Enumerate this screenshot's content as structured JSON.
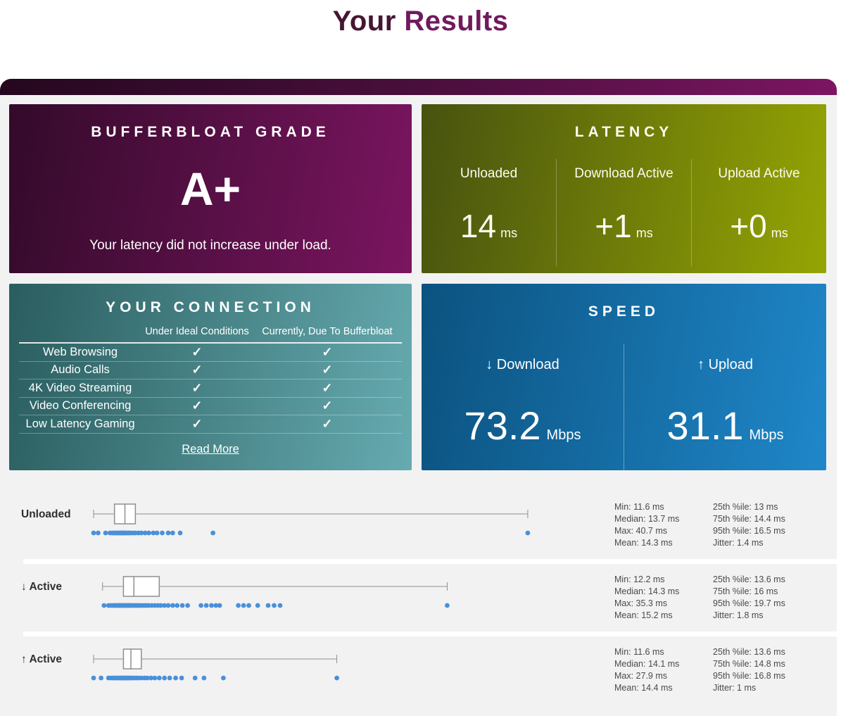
{
  "page_title": {
    "word1": "Your",
    "word2": "Results"
  },
  "colors": {
    "title_dark": "#451634",
    "title_magenta": "#701a5e",
    "topbar_gradient": [
      "#25071f",
      "#7c1562"
    ],
    "grade_card_gradient": [
      "#330a2a",
      "#7b1560"
    ],
    "latency_card_gradient": [
      "#47520f",
      "#95a503"
    ],
    "connection_card_gradient": [
      "#2a5d5f",
      "#66abb0"
    ],
    "speed_card_gradient": [
      "#0b527f",
      "#1f87c9"
    ],
    "page_background": "#f2f2f3",
    "dot_blue": "#4a90d9",
    "box_stroke": "#8f8f8f",
    "stats_text": "#4a4a4a"
  },
  "cards": {
    "grade": {
      "title": "BUFFERBLOAT GRADE",
      "grade": "A+",
      "note": "Your latency did not increase under load."
    },
    "latency": {
      "title": "LATENCY",
      "unit": "ms",
      "cols": [
        {
          "label": "Unloaded",
          "value": "14"
        },
        {
          "label": "Download Active",
          "value": "+1"
        },
        {
          "label": "Upload Active",
          "value": "+0"
        }
      ]
    },
    "connection": {
      "title": "YOUR CONNECTION",
      "col_headers": [
        "Under Ideal Conditions",
        "Currently, Due To Bufferbloat"
      ],
      "rows": [
        {
          "label": "Web Browsing",
          "ideal": "✓",
          "current": "✓"
        },
        {
          "label": "Audio Calls",
          "ideal": "✓",
          "current": "✓"
        },
        {
          "label": "4K Video Streaming",
          "ideal": "✓",
          "current": "✓"
        },
        {
          "label": "Video Conferencing",
          "ideal": "✓",
          "current": "✓"
        },
        {
          "label": "Low Latency Gaming",
          "ideal": "✓",
          "current": "✓"
        }
      ],
      "read_more": "Read More"
    },
    "speed": {
      "title": "SPEED",
      "unit": "Mbps",
      "cols": [
        {
          "arrow": "↓",
          "label": "Download",
          "value": "73.2"
        },
        {
          "arrow": "↑",
          "label": "Upload",
          "value": "31.1"
        }
      ]
    }
  },
  "plots": [
    {
      "arrow": "",
      "label": "Unloaded",
      "stats_col1": [
        "Min: 11.6 ms",
        "Median: 13.7 ms",
        "Max: 40.7 ms",
        "Mean: 14.3 ms"
      ],
      "stats_col2": [
        "25th %ile: 13 ms",
        "75th %ile: 14.4 ms",
        "95th %ile: 16.5 ms",
        "Jitter: 1.4 ms"
      ]
    },
    {
      "arrow": "↓",
      "label": "Active",
      "stats_col1": [
        "Min: 12.2 ms",
        "Median: 14.3 ms",
        "Max: 35.3 ms",
        "Mean: 15.2 ms"
      ],
      "stats_col2": [
        "25th %ile: 13.6 ms",
        "75th %ile: 16 ms",
        "95th %ile: 19.7 ms",
        "Jitter: 1.8 ms"
      ]
    },
    {
      "arrow": "↑",
      "label": "Active",
      "stats_col1": [
        "Min: 11.6 ms",
        "Median: 14.1 ms",
        "Max: 27.9 ms",
        "Mean: 14.4 ms"
      ],
      "stats_col2": [
        "25th %ile: 13.6 ms",
        "75th %ile: 14.8 ms",
        "95th %ile: 16.8 ms",
        "Jitter: 1 ms"
      ]
    }
  ],
  "chart_data": [
    {
      "type": "boxplot",
      "name": "Unloaded latency",
      "unit": "ms",
      "x_range": [
        11.6,
        40.7
      ],
      "min": 11.6,
      "q1": 13,
      "median": 13.7,
      "q3": 14.4,
      "max": 40.7,
      "mean": 14.3,
      "p95": 16.5,
      "jitter": 1.4,
      "points": [
        11.6,
        11.9,
        12.4,
        12.7,
        12.85,
        12.95,
        13.05,
        13.1,
        13.2,
        13.25,
        13.3,
        13.4,
        13.45,
        13.5,
        13.6,
        13.65,
        13.7,
        13.8,
        13.9,
        14.0,
        14.1,
        14.25,
        14.4,
        14.6,
        14.8,
        15.05,
        15.3,
        15.6,
        15.85,
        16.2,
        16.6,
        16.9,
        17.4,
        19.6,
        40.7
      ]
    },
    {
      "type": "boxplot",
      "name": "Download active latency",
      "unit": "ms",
      "x_range": [
        12.2,
        35.3
      ],
      "min": 12.2,
      "q1": 13.6,
      "median": 14.3,
      "q3": 16,
      "max": 35.3,
      "mean": 15.2,
      "p95": 19.7,
      "jitter": 1.8,
      "points": [
        12.3,
        12.6,
        12.75,
        12.9,
        13.0,
        13.1,
        13.2,
        13.3,
        13.35,
        13.4,
        13.5,
        13.55,
        13.6,
        13.7,
        13.75,
        13.8,
        13.9,
        13.95,
        14.0,
        14.1,
        14.2,
        14.3,
        14.4,
        14.5,
        14.6,
        14.7,
        14.85,
        15.0,
        15.15,
        15.3,
        15.5,
        15.7,
        15.9,
        16.1,
        16.35,
        16.6,
        16.9,
        17.2,
        17.55,
        17.9,
        18.8,
        19.15,
        19.5,
        19.8,
        20.05,
        21.3,
        21.65,
        22.0,
        22.6,
        23.3,
        23.7,
        24.1,
        35.3
      ]
    },
    {
      "type": "boxplot",
      "name": "Upload active latency",
      "unit": "ms",
      "x_range": [
        11.6,
        27.9
      ],
      "min": 11.6,
      "q1": 13.6,
      "median": 14.1,
      "q3": 14.8,
      "max": 27.9,
      "mean": 14.4,
      "p95": 16.8,
      "jitter": 1,
      "points": [
        11.6,
        12.1,
        12.6,
        12.75,
        12.9,
        13.0,
        13.1,
        13.2,
        13.3,
        13.4,
        13.45,
        13.5,
        13.6,
        13.65,
        13.7,
        13.8,
        13.85,
        13.9,
        14.0,
        14.1,
        14.2,
        14.3,
        14.45,
        14.6,
        14.8,
        15.0,
        15.2,
        15.45,
        15.7,
        16.0,
        16.35,
        16.7,
        17.1,
        17.5,
        18.4,
        19.0,
        20.3,
        27.9
      ]
    }
  ]
}
